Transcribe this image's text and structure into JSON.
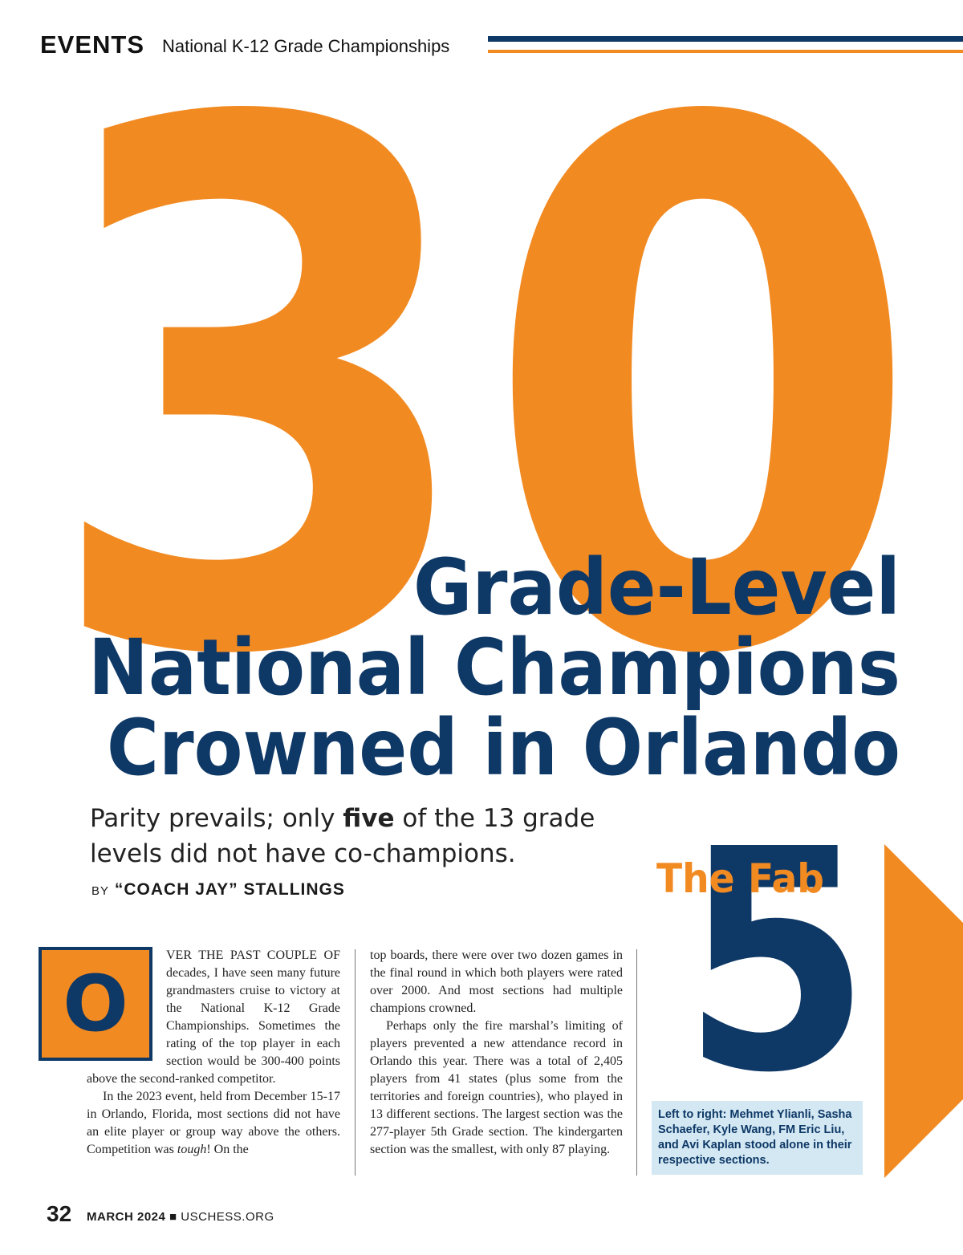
{
  "header": {
    "section": "EVENTS",
    "title": "National K-12 Grade Championships"
  },
  "hero": {
    "number": "30",
    "headline": [
      "Grade-Level",
      "National Champions",
      "Crowned in Orlando"
    ]
  },
  "deck": {
    "before": "Parity prevails; only ",
    "bold": "five",
    "after": " of the 13 grade levels did not have co-champions."
  },
  "byline": {
    "by": "BY",
    "author": "“COACH JAY” STALLINGS"
  },
  "body": {
    "drop_cap": "O",
    "column_1": [
      [
        "VER THE PAST COUPLE OF decades, I have seen many future grandmasters cruise to victory at the National K-12 Grade Championships. Sometimes the rating of the top player in each section would be 300-400 points above the second-ranked competitor."
      ],
      [
        "In the 2023 event, held from December 15-17 in Orlando, Florida, most sections did not have an elite player or group way above the others. Competition was ",
        "tough",
        "! On the"
      ]
    ],
    "column_2": [
      "top boards, there were over two dozen games in the final round in which both players were rated over 2000. And most sections had multiple champions crowned.",
      "Perhaps only the fire marshal’s limiting of players prevented a new attendance record in Orlando this year. There was a total of 2,405 players from 41 states (plus some from the territories and foreign countries), who played in 13 different sections. The largest section was the 277-player 5th Grade section. The kindergarten section was the smallest, with only 87 playing."
    ]
  },
  "sidebar": {
    "kicker": "The Fab",
    "number": "5",
    "caption": "Left to right: Mehmet Ylianli, Sasha Schaefer, Kyle Wang, FM Eric Liu, and Avi Kaplan stood alone in their respective sections."
  },
  "footer": {
    "page": "32",
    "issue": "MARCH 2024",
    "site": "USCHESS.ORG"
  }
}
